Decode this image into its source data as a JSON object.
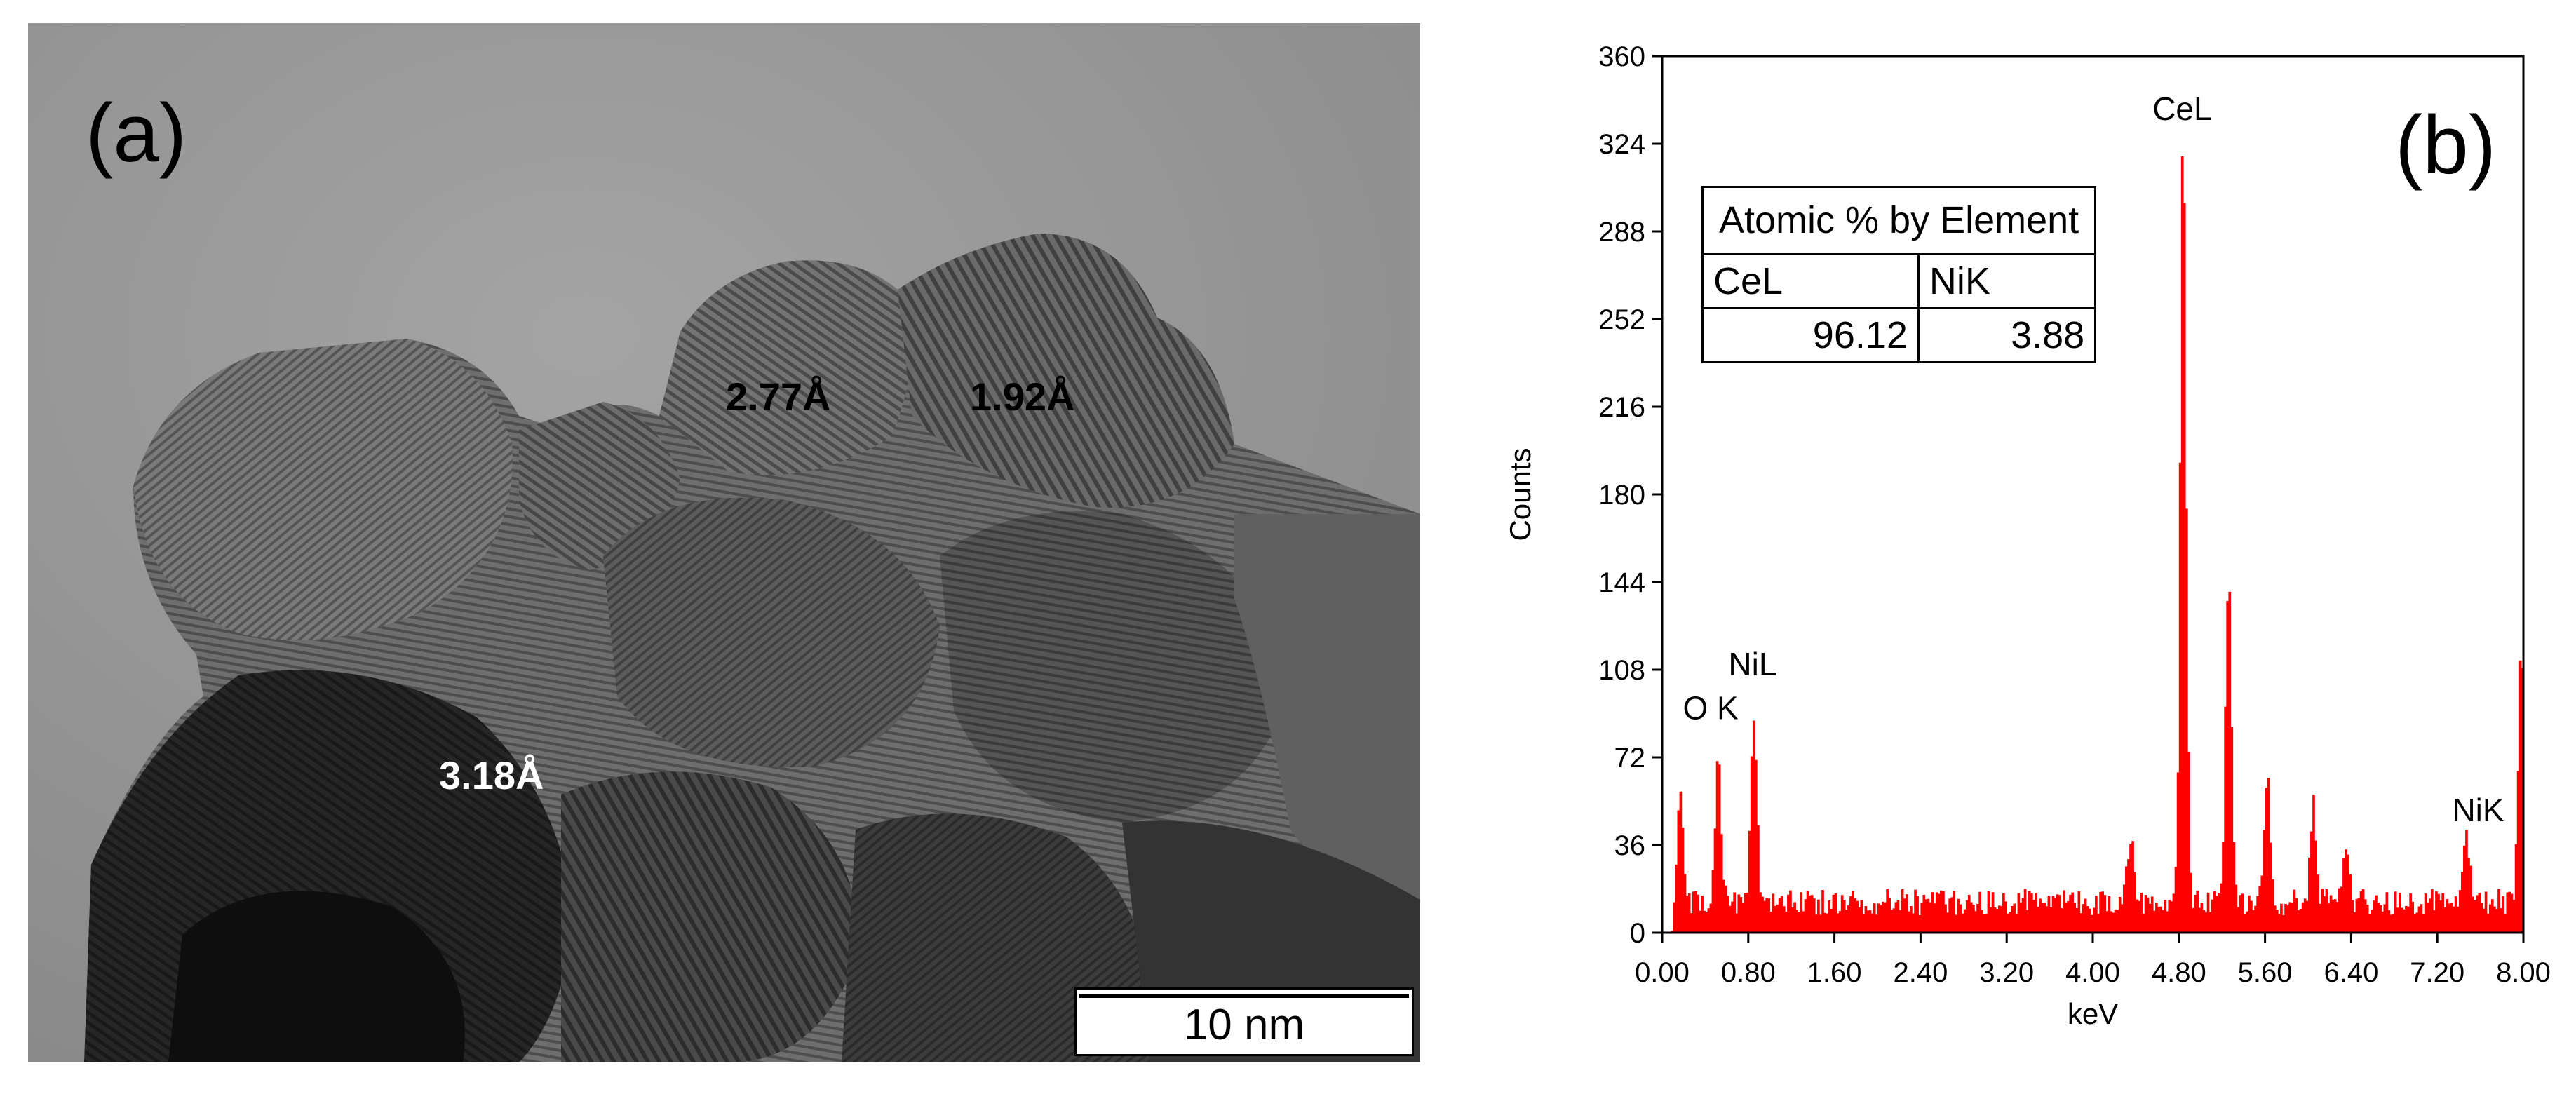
{
  "panel_a": {
    "label": "(a)",
    "lattice_labels": [
      "2.77Å",
      "1.92Å",
      "3.18Å"
    ],
    "scale_bar": "10 nm"
  },
  "panel_b_label": "(b)",
  "inset_table": {
    "title": "Atomic % by Element",
    "headers": [
      "CeL",
      "NiK"
    ],
    "values": [
      "96.12",
      "3.88"
    ]
  },
  "chart_data": {
    "type": "bar",
    "title": "",
    "xlabel": "keV",
    "ylabel": "Counts",
    "xlim": [
      0.0,
      8.0
    ],
    "ylim": [
      0,
      360
    ],
    "xticks": [
      "0.00",
      "0.80",
      "1.60",
      "2.40",
      "3.20",
      "4.00",
      "4.80",
      "5.60",
      "6.40",
      "7.20",
      "8.00"
    ],
    "yticks": [
      "0",
      "36",
      "72",
      "108",
      "144",
      "180",
      "216",
      "252",
      "288",
      "324",
      "360"
    ],
    "bar_color": "#ff0000",
    "background_level": 12,
    "peaks": [
      {
        "kev": 0.17,
        "counts": 50
      },
      {
        "kev": 0.52,
        "counts": 58
      },
      {
        "kev": 0.85,
        "counts": 85
      },
      {
        "kev": 4.35,
        "counts": 28
      },
      {
        "kev": 4.84,
        "counts": 330
      },
      {
        "kev": 5.26,
        "counts": 152
      },
      {
        "kev": 5.62,
        "counts": 55
      },
      {
        "kev": 6.05,
        "counts": 42
      },
      {
        "kev": 6.35,
        "counts": 20
      },
      {
        "kev": 7.47,
        "counts": 30
      },
      {
        "kev": 7.98,
        "counts": 120
      }
    ],
    "annotations": [
      {
        "text": "O K",
        "kev": 0.45,
        "counts": 86
      },
      {
        "text": "NiL",
        "kev": 0.84,
        "counts": 104
      },
      {
        "text": "CeL",
        "kev": 4.83,
        "counts": 332
      },
      {
        "text": "NiK",
        "kev": 7.58,
        "counts": 44
      }
    ]
  }
}
